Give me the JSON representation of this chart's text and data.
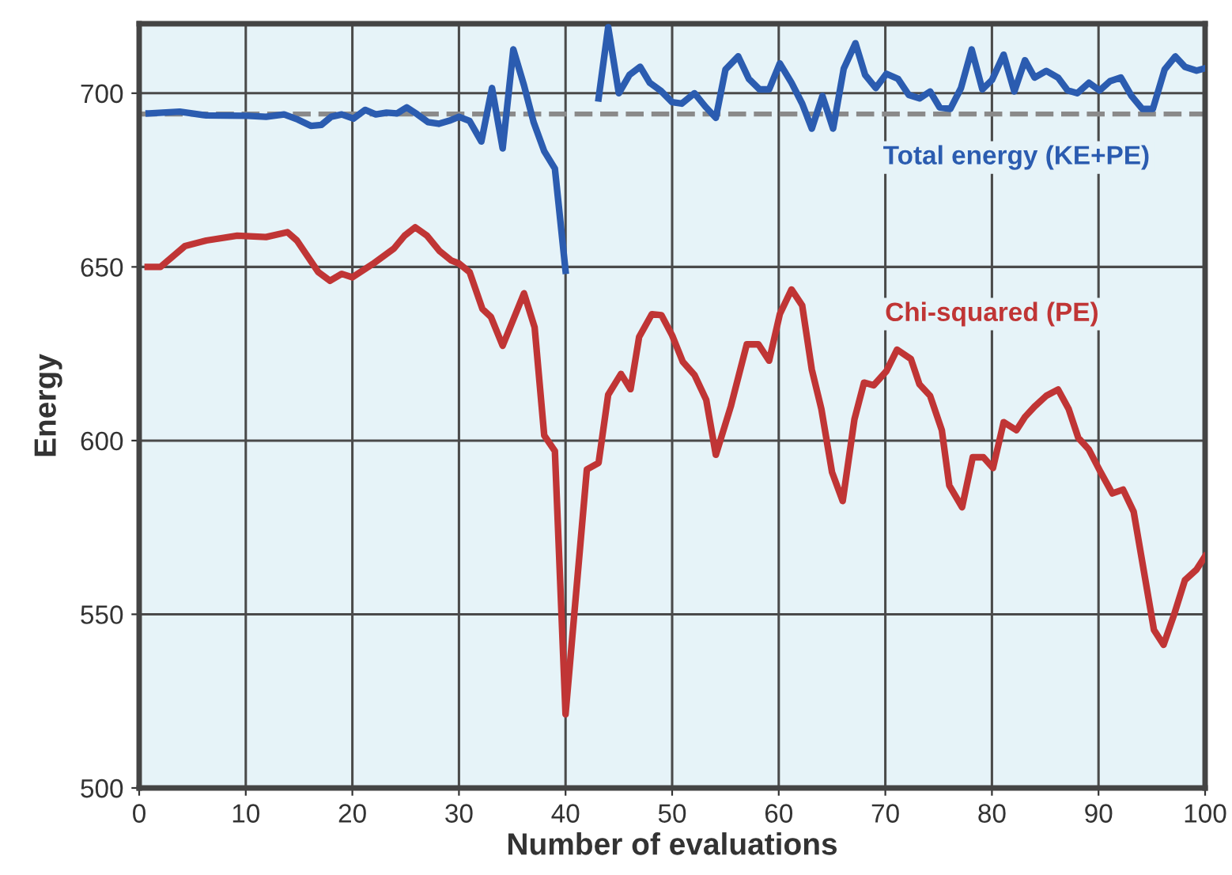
{
  "chart_data": {
    "type": "line",
    "xlabel": "Number of evaluations",
    "ylabel": "Energy",
    "xlim": [
      0,
      100
    ],
    "ylim": [
      500,
      720
    ],
    "xticks": [
      0,
      10,
      20,
      30,
      40,
      50,
      60,
      70,
      80,
      90,
      100
    ],
    "yticks": [
      500,
      550,
      600,
      650,
      700
    ],
    "grid": true,
    "legend": false,
    "marker": "none",
    "line_style": "solid",
    "ref_lines": [
      {
        "axis": "y",
        "value": 694,
        "color": "#8a8a8a",
        "line_style": "dashed"
      }
    ],
    "series": [
      {
        "name": "Total energy (KE+PE)",
        "color": "#2b5cb0",
        "x": [
          0.9,
          3.8,
          6.3,
          10.2,
          11.9,
          13.6,
          14.9,
          16.1,
          17.1,
          18,
          19,
          20.1,
          21.2,
          22.2,
          23.2,
          24.2,
          25.1,
          26.1,
          27.1,
          28.1,
          29.1,
          30,
          31,
          32.1,
          33.1,
          34.1,
          35.1,
          36.1,
          37,
          38,
          39,
          40,
          40.8,
          42,
          43.1,
          44,
          45,
          46,
          47,
          47.9,
          48.9,
          50,
          50.9,
          52.1,
          53.1,
          54.1,
          55,
          56.2,
          57.2,
          58.2,
          59.1,
          60.1,
          61.2,
          62.2,
          63.1,
          64.1,
          65.1,
          66.1,
          67.2,
          68.1,
          69.1,
          70.1,
          71.2,
          72.2,
          73.2,
          74.2,
          75.1,
          76.1,
          77.1,
          78.1,
          79.1,
          80,
          81.1,
          82.1,
          83.1,
          84,
          85.1,
          86.2,
          87.1,
          88,
          89.1,
          90.1,
          91.1,
          92.1,
          93.1,
          94.1,
          95.1,
          96.2,
          97.2,
          98.1,
          99.2,
          99.9
        ],
        "values": [
          694.2,
          694.7,
          693.6,
          693.5,
          693.2,
          693.9,
          692.4,
          690.6,
          690.9,
          693.2,
          693.9,
          692.7,
          695.2,
          693.9,
          694.4,
          694.2,
          695.9,
          693.9,
          691.7,
          691.2,
          692.1,
          693.2,
          692,
          686.1,
          701.5,
          684.1,
          712.6,
          702.3,
          691.7,
          683.3,
          678.3,
          648.9,
          null,
          null,
          698.5,
          719,
          700,
          705.3,
          707.6,
          703,
          700.8,
          697.4,
          697,
          700,
          696.2,
          692.9,
          706.8,
          710.6,
          704.1,
          701.1,
          701.1,
          708.6,
          703,
          697,
          689.8,
          699.2,
          689.8,
          707.1,
          714.4,
          705.3,
          701.5,
          705.6,
          704.1,
          699.5,
          698.5,
          700.5,
          695.9,
          695.5,
          701.5,
          712.6,
          701.1,
          703.8,
          711.1,
          700.5,
          709.5,
          704.5,
          706.4,
          704.5,
          700.8,
          700,
          703,
          700.8,
          703.5,
          704.5,
          699.2,
          695.5,
          695.5,
          706.8,
          710.6,
          707.6,
          706.5,
          707.1
        ]
      },
      {
        "name": "Chi-squared (PE)",
        "color": "#c03535",
        "x": [
          0.8,
          2,
          4.3,
          6.3,
          9.2,
          11.9,
          13.9,
          14.8,
          16.8,
          17.9,
          19,
          20,
          21.9,
          23.9,
          24.9,
          25.9,
          27,
          28.2,
          29.3,
          30,
          31,
          32.2,
          33,
          34.1,
          36.1,
          37.1,
          38,
          39,
          40,
          42,
          43.1,
          44,
          45.2,
          46.1,
          46.9,
          48.1,
          49,
          50,
          51,
          52.1,
          53.2,
          54.1,
          55.5,
          57,
          58.1,
          59.1,
          60.1,
          61.2,
          62.2,
          63.1,
          64,
          65,
          66,
          67.1,
          68,
          68.9,
          70.1,
          71.1,
          72.4,
          73.2,
          74.2,
          75.3,
          76,
          77.2,
          78.2,
          79.2,
          80.1,
          81.1,
          82.3,
          83.1,
          84,
          85.1,
          86.2,
          87.2,
          88.1,
          89.1,
          90.2,
          91.3,
          92.3,
          93.3,
          95.2,
          96.1,
          97.1,
          98.1,
          99.2,
          100
        ],
        "values": [
          650,
          650,
          656,
          657.6,
          659,
          658.6,
          660,
          657.6,
          648.5,
          646,
          648,
          647,
          650.8,
          655.3,
          659,
          661.4,
          659,
          654.5,
          651.8,
          651,
          648.5,
          637.9,
          635.6,
          627.3,
          642.4,
          632.6,
          601.5,
          597,
          521.2,
          591.7,
          593.6,
          613.2,
          619.2,
          614.8,
          629.8,
          636.4,
          636.1,
          630.3,
          622.7,
          618.9,
          611.7,
          595.9,
          609.8,
          627.7,
          627.7,
          623,
          636.4,
          643.5,
          638.9,
          620.5,
          609.1,
          590.9,
          582.6,
          606.1,
          616.7,
          615.9,
          620,
          626.2,
          623.5,
          616.2,
          612.9,
          603,
          587.1,
          580.8,
          595.2,
          595.2,
          592.1,
          605.3,
          603,
          606.8,
          609.8,
          612.9,
          614.7,
          609.1,
          600.8,
          597.4,
          590.9,
          584.8,
          585.9,
          579.5,
          545.5,
          541.2,
          550,
          559.8,
          562.9,
          566.7
        ]
      }
    ]
  }
}
